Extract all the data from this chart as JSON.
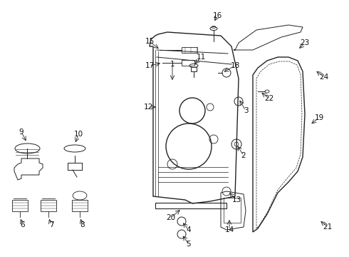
{
  "background_color": "#ffffff",
  "fig_width": 4.9,
  "fig_height": 3.6,
  "dpi": 100,
  "line_color": "#222222",
  "label_color": "#111111",
  "label_fontsize": 7.5
}
